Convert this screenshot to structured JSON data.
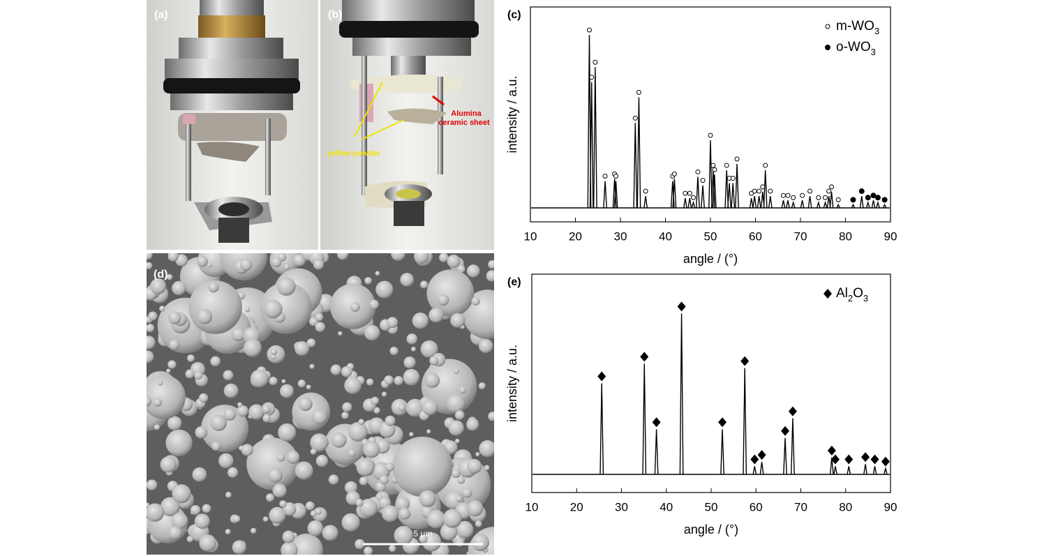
{
  "panels": {
    "a": {
      "label": "(a)"
    },
    "b": {
      "label": "(b)",
      "annotation_1": "Alumina",
      "annotation_2": "ceramic sheet",
      "annotation_3": "yellow powder"
    },
    "d": {
      "label": "(d)",
      "scale_bar": "5 μm"
    }
  },
  "chart_data": [
    {
      "type": "line",
      "panel_label": "(c)",
      "x_label": "angle / (°)",
      "y_label": "intensity / a.u.",
      "xlim": [
        10,
        90
      ],
      "xticks": [
        10,
        20,
        30,
        40,
        50,
        60,
        70,
        80,
        90
      ],
      "ylim": [
        0,
        100
      ],
      "baseline": 6.5,
      "legend": "top-right",
      "series": [
        {
          "name": "m-WO3",
          "marker": "open-circle",
          "color": "#000",
          "x": [
            23.1,
            23.6,
            24.4,
            26.6,
            28.7,
            29.0,
            33.3,
            34.1,
            35.6,
            41.6,
            42.0,
            44.4,
            45.4,
            46.2,
            47.2,
            48.3,
            50.0,
            50.6,
            50.9,
            53.6,
            54.2,
            55.0,
            55.9,
            59.1,
            59.8,
            60.8,
            61.6,
            62.2,
            63.3,
            66.2,
            67.2,
            68.4,
            70.4,
            72.1,
            74.0,
            75.5,
            76.3,
            76.9,
            78.4
          ],
          "values": [
            87,
            65,
            72,
            19,
            20,
            19,
            46,
            58,
            12,
            19,
            20,
            11,
            11,
            9,
            21,
            17,
            38,
            24,
            22,
            24,
            18,
            18,
            27,
            11,
            12,
            12,
            14,
            24,
            12,
            10,
            10,
            9,
            10,
            12,
            9,
            9,
            12,
            14,
            8
          ]
        },
        {
          "name": "o-WO3",
          "marker": "filled-circle",
          "color": "#000",
          "x": [
            81.7,
            83.6,
            85.0,
            86.2,
            87.2,
            88.7
          ],
          "values": [
            8,
            12,
            9,
            10,
            9,
            8
          ]
        }
      ]
    },
    {
      "type": "line",
      "panel_label": "(e)",
      "x_label": "angle / (°)",
      "y_label": "intensity / a.u.",
      "xlim": [
        10,
        90
      ],
      "xticks": [
        10,
        20,
        30,
        40,
        50,
        60,
        70,
        80,
        90
      ],
      "ylim": [
        0,
        100
      ],
      "baseline": 8.3,
      "legend": "top-right",
      "series": [
        {
          "name": "Al2O3",
          "marker": "diamond",
          "color": "#000",
          "x": [
            25.6,
            35.1,
            37.8,
            43.4,
            52.5,
            57.5,
            59.7,
            61.3,
            66.5,
            68.2,
            76.9,
            77.7,
            80.7,
            84.4,
            86.5,
            88.9
          ],
          "values": [
            50,
            59,
            29,
            82,
            29,
            57,
            12,
            14,
            25,
            34,
            16,
            12,
            12,
            13,
            12,
            11
          ]
        }
      ]
    }
  ]
}
